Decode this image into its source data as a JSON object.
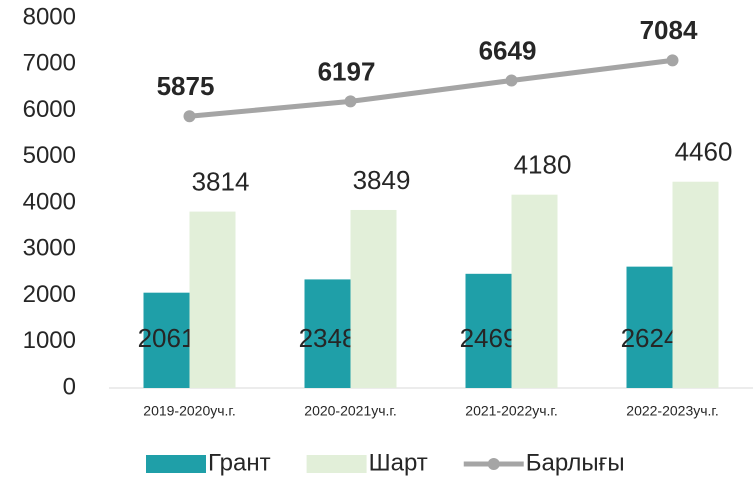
{
  "chart_data": {
    "type": "bar",
    "categories": [
      "2019-2020уч.г.",
      "2020-2021уч.г.",
      "2021-2022уч.г.",
      "2022-2023уч.г."
    ],
    "series": [
      {
        "name": "Грант",
        "color": "#1f9fa8",
        "type": "bar",
        "values": [
          2061,
          2348,
          2469,
          2624
        ]
      },
      {
        "name": "Шарт",
        "color": "#e2efd9",
        "type": "bar",
        "values": [
          3814,
          3849,
          4180,
          4460
        ]
      },
      {
        "name": "Барлығы",
        "color": "#a5a5a5",
        "type": "line",
        "values": [
          5875,
          6197,
          6649,
          7084
        ]
      }
    ],
    "ylim": [
      0,
      8000
    ],
    "yticks": [
      0,
      1000,
      2000,
      3000,
      4000,
      5000,
      6000,
      7000,
      8000
    ],
    "grid": false,
    "legend": "bottom"
  }
}
